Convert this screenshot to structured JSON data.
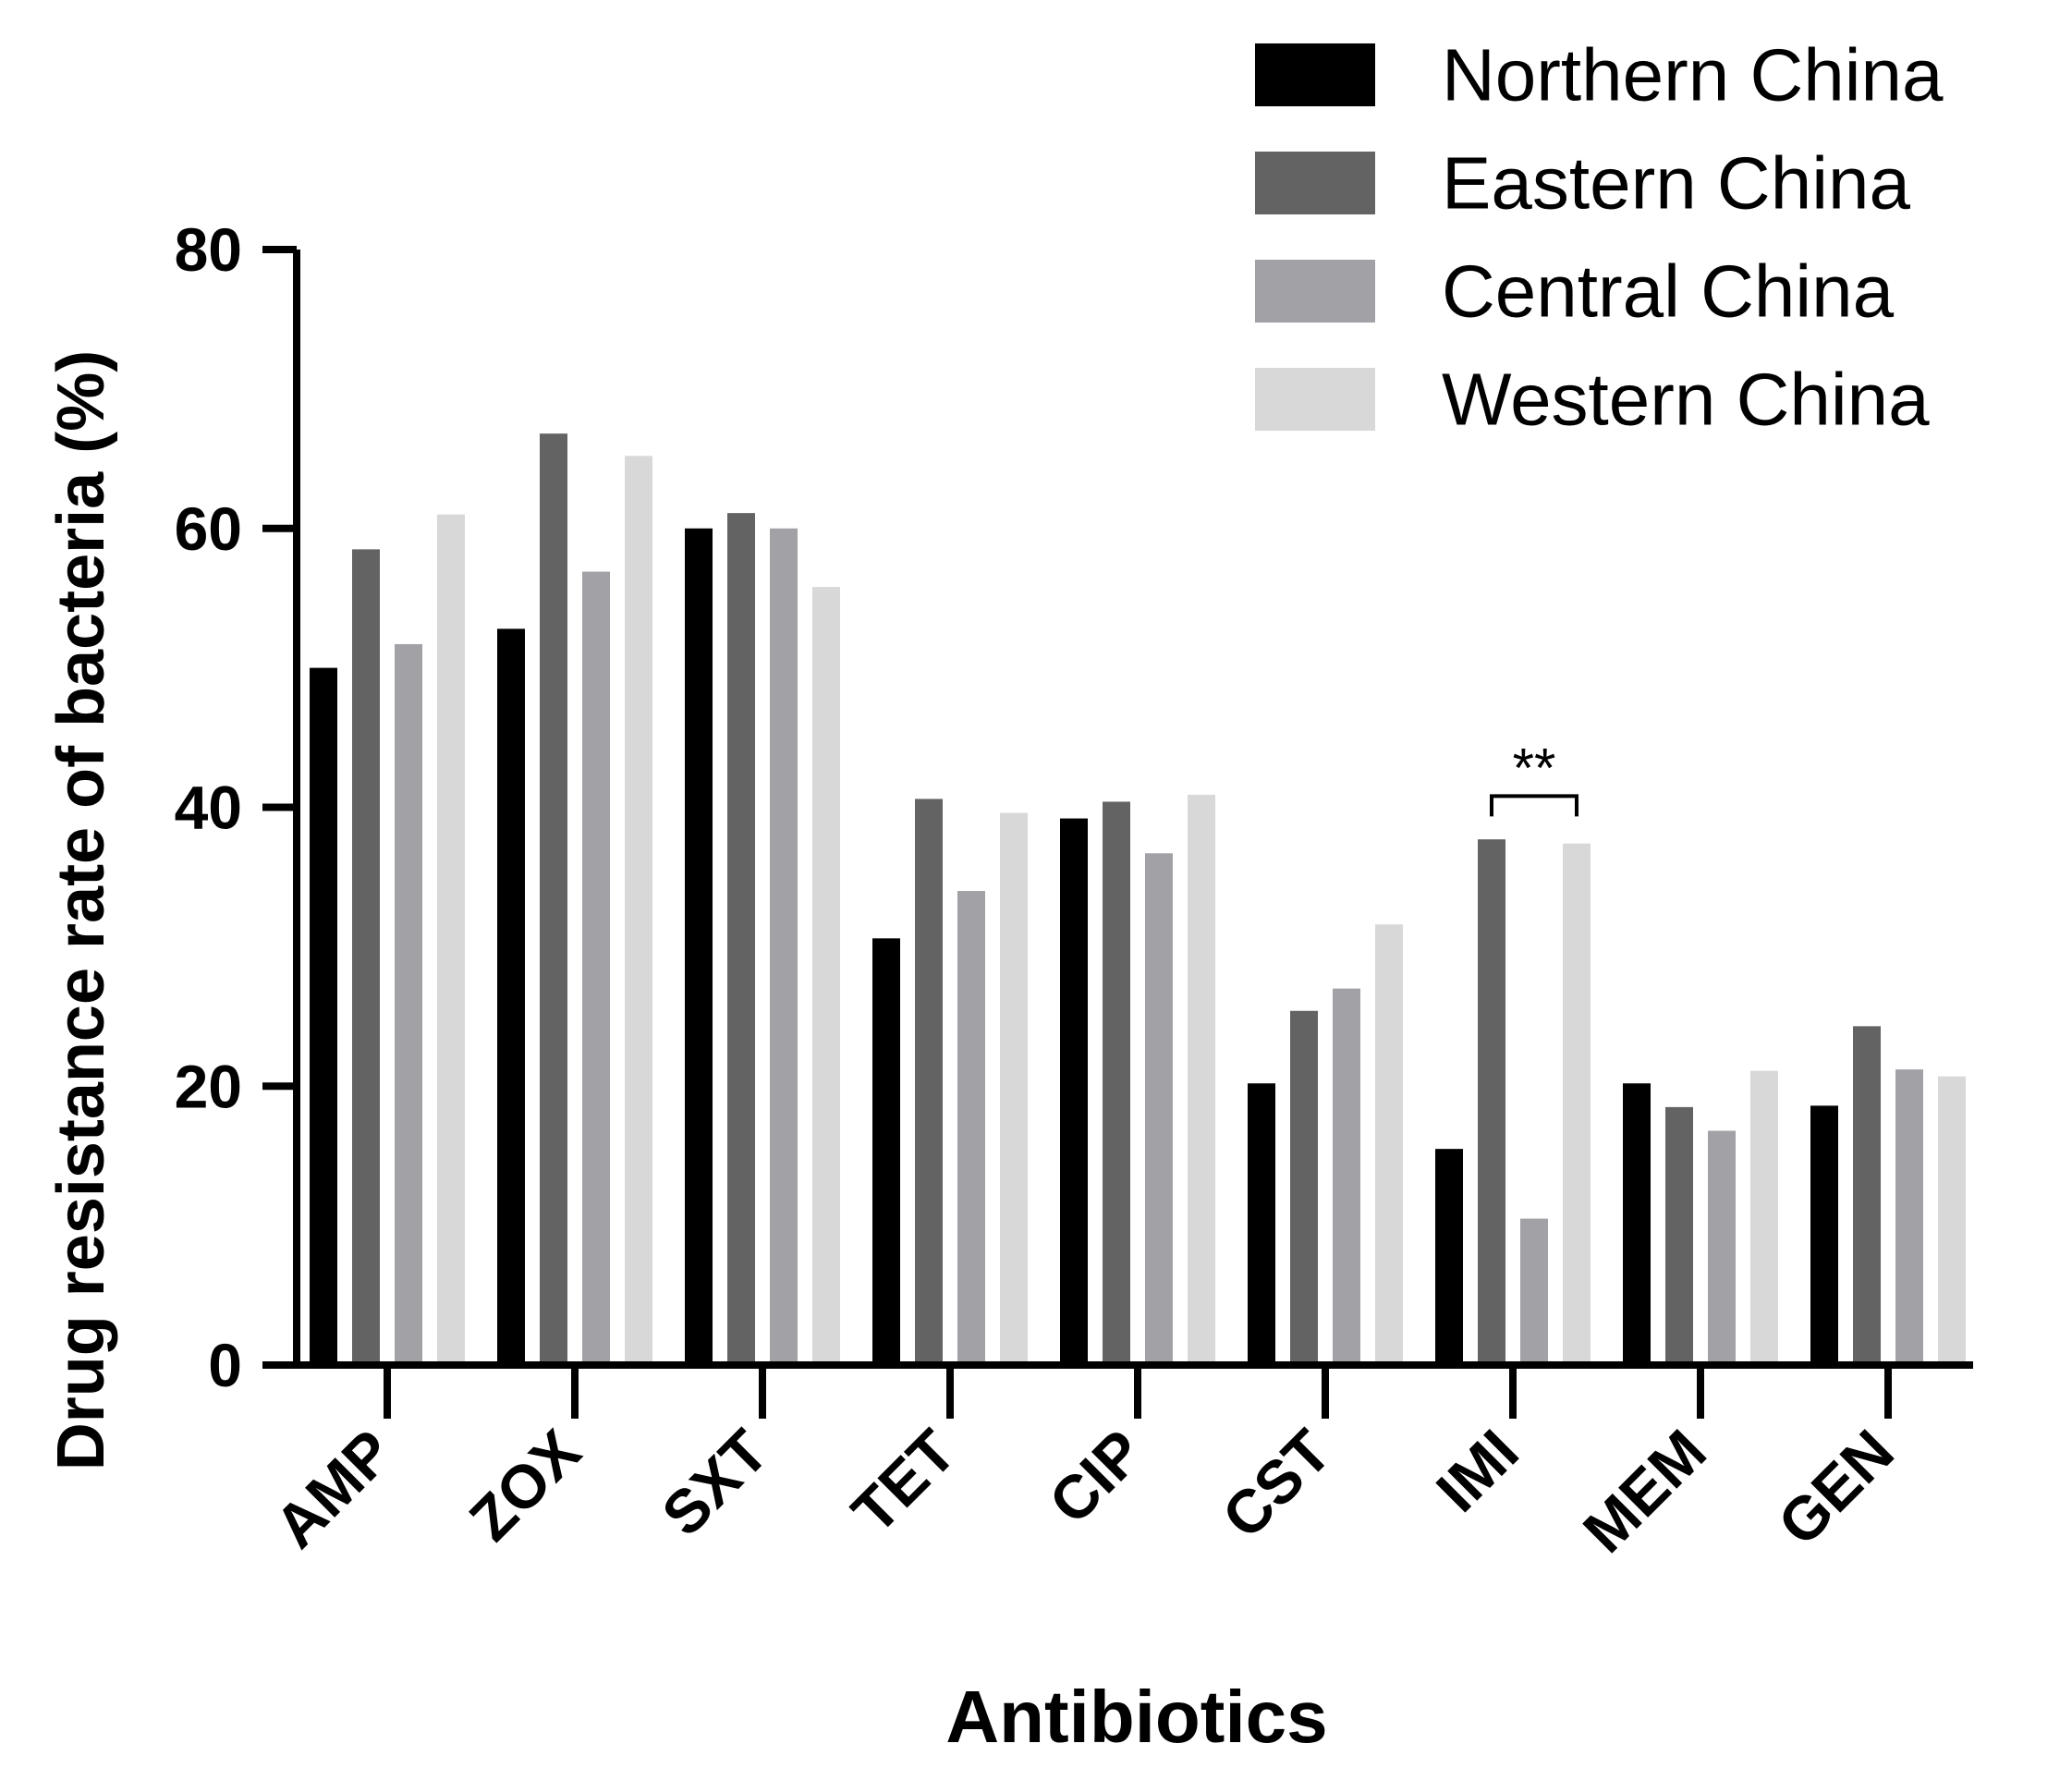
{
  "chart_data": {
    "type": "bar",
    "title": "",
    "xlabel": "Antibiotics",
    "ylabel": "Drug resistance rate of bacteria (%)",
    "ylim": [
      0,
      80
    ],
    "yticks": [
      0,
      20,
      40,
      60,
      80
    ],
    "categories": [
      "AMP",
      "ZOX",
      "SXT",
      "TET",
      "CIP",
      "CST",
      "IMI",
      "MEM",
      "GEN"
    ],
    "series": [
      {
        "name": "Northern China",
        "color": "#000000",
        "values": [
          50.0,
          52.8,
          60.0,
          30.6,
          39.2,
          20.2,
          15.5,
          20.2,
          18.6
        ]
      },
      {
        "name": "Eastern China",
        "color": "#636363",
        "values": [
          58.5,
          66.8,
          61.1,
          40.6,
          40.4,
          25.4,
          37.7,
          18.5,
          24.3
        ]
      },
      {
        "name": "Central China",
        "color": "#a2a1a6",
        "values": [
          51.7,
          56.9,
          60.0,
          34.0,
          36.7,
          27.0,
          10.5,
          16.8,
          21.2
        ]
      },
      {
        "name": "Western China",
        "color": "#d8d8d8",
        "values": [
          61.0,
          65.2,
          55.8,
          39.6,
          40.9,
          31.6,
          37.4,
          21.1,
          20.7
        ]
      }
    ],
    "annotations": [
      {
        "text": "**",
        "category": "IMI",
        "from_series": "Eastern China",
        "to_series": "Western China",
        "level": 40.8
      }
    ],
    "legend_position": "top-right",
    "grid": false
  }
}
